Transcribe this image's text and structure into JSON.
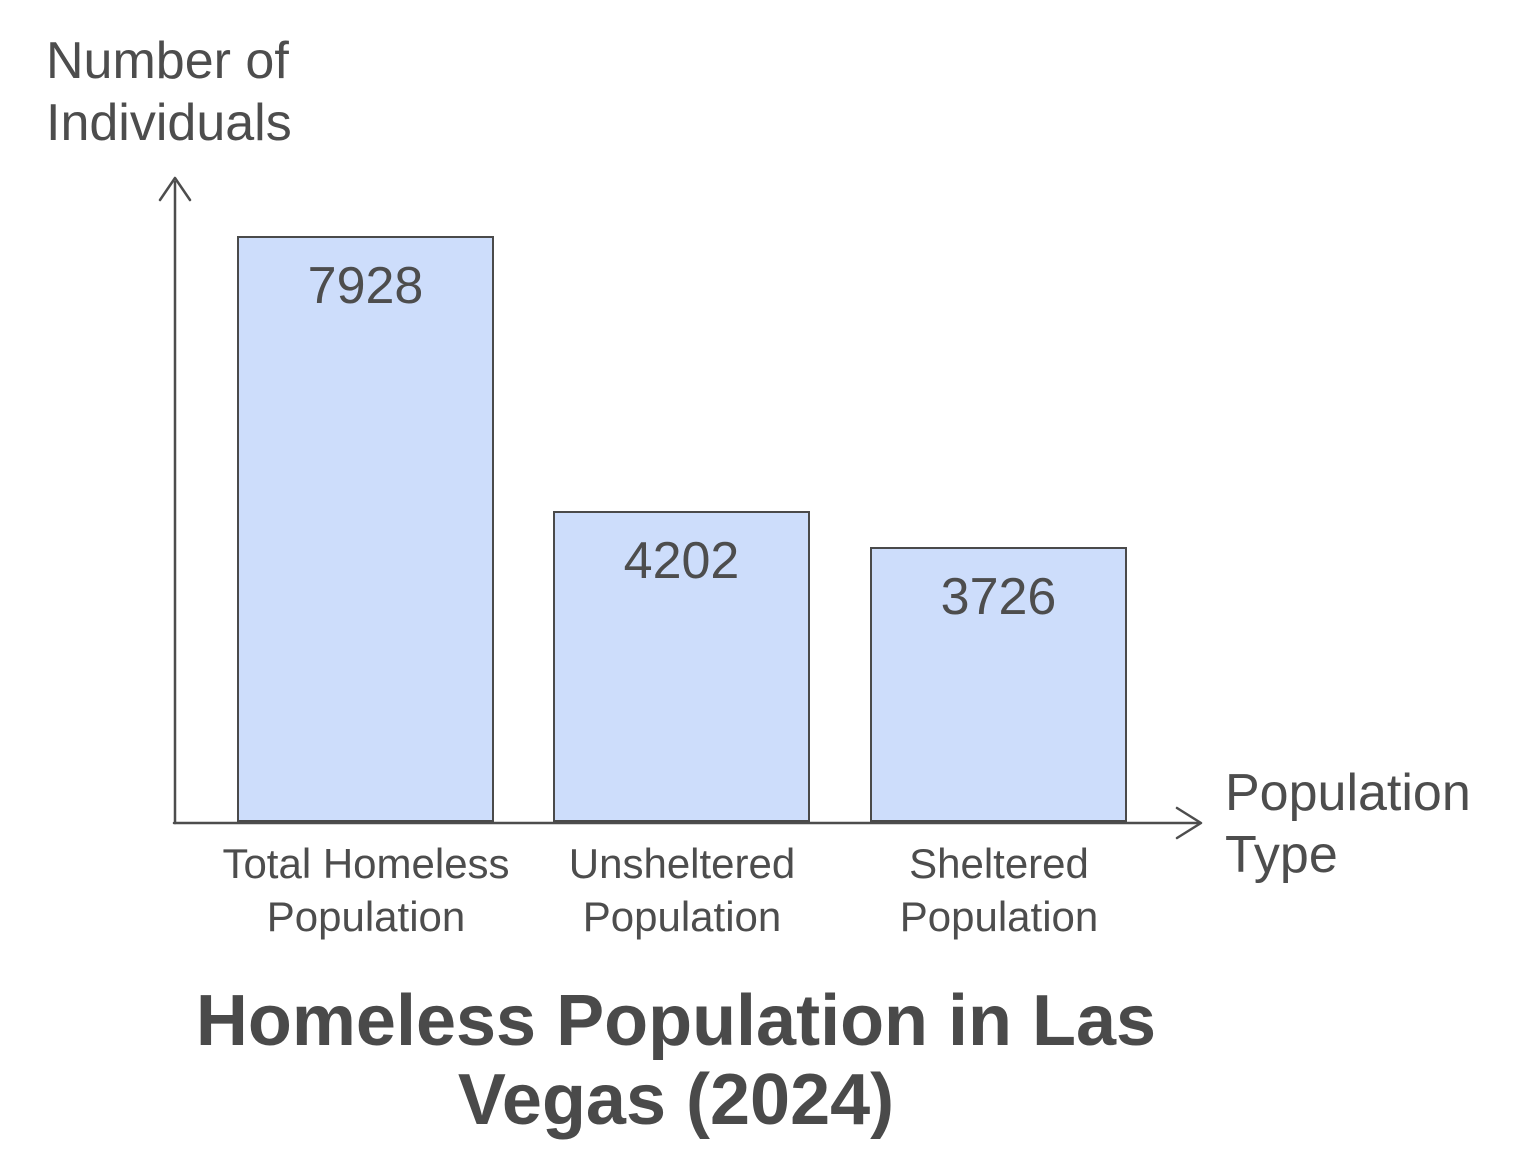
{
  "chart_data": {
    "type": "bar",
    "title": "Homeless Population in Las Vegas (2024)",
    "xlabel": "Population Type",
    "ylabel": "Number of Individuals",
    "categories": [
      "Total Homeless Population",
      "Unsheltered Population",
      "Sheltered Population"
    ],
    "values": [
      7928,
      4202,
      3726
    ],
    "value_label_position": "inside-top",
    "ylim": [
      0,
      7928
    ],
    "gridlines": false,
    "legend": "none",
    "colors": {
      "bar_fill": "#cdddfb",
      "bar_border": "#4a4a4a",
      "axis": "#4d4d4d",
      "text": "#4d4d4d",
      "title": "#4a4a4a",
      "background": "#ffffff"
    }
  }
}
